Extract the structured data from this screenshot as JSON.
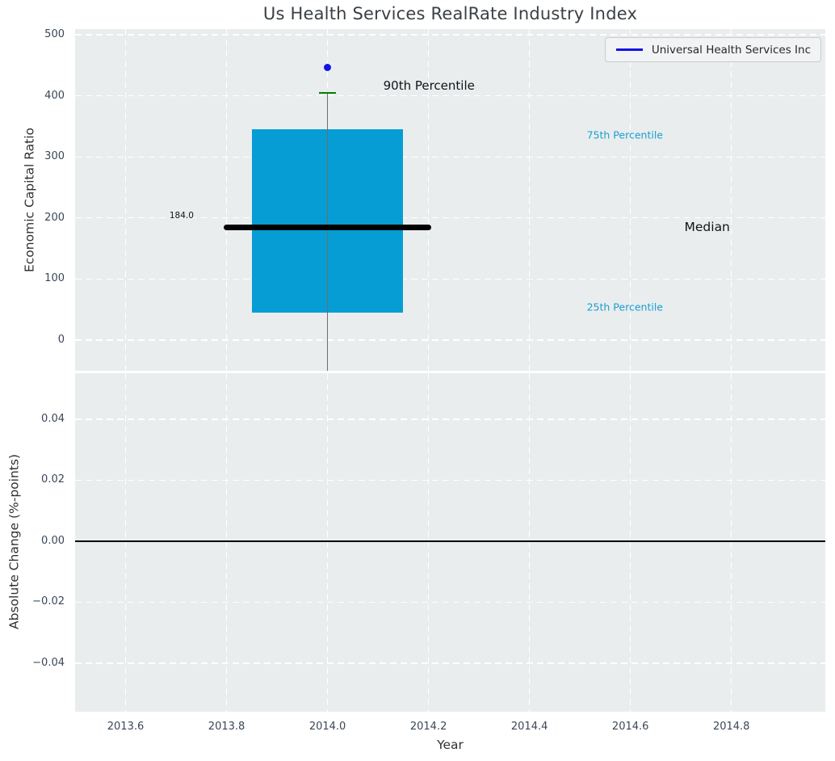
{
  "title": "Us Health Services RealRate Industry Index",
  "legend": {
    "label": "Universal Health Services Inc"
  },
  "colors": {
    "figure_bg": "#ffffff",
    "axes_bg": "#e9edee",
    "grid": "#ffffff",
    "tick_label": "#3a4757",
    "axis_label": "#2e3236",
    "title": "#3b4045",
    "box_fill": "#059dd4",
    "median_line": "#000000",
    "whisker": "#6e6e6e",
    "p90_cap": "#008000",
    "point": "#1512e6",
    "legend_line": "#1512e6",
    "percentile_label": "#1b9ecf",
    "annotation_dark": "#111418",
    "zero_line": "#000000"
  },
  "chart_data": [
    {
      "type": "boxplot",
      "title": "Us Health Services RealRate Industry Index",
      "ylabel": "Economic Capital Ratio",
      "xlim": [
        2013.5,
        2014.986
      ],
      "ylim": [
        -50.4,
        509.4
      ],
      "grid": true,
      "legend_position": "upper right",
      "yticks": [
        0,
        100,
        200,
        300,
        400,
        500
      ],
      "ytick_labels": [
        "0",
        "100",
        "200",
        "300",
        "400",
        "500"
      ],
      "xticks": [
        2013.6,
        2013.8,
        2014.0,
        2014.2,
        2014.4,
        2014.6,
        2014.8
      ],
      "box": {
        "x_center": 2014.0,
        "box_left": 2013.85,
        "box_right": 2014.15,
        "q1_25th_percentile": 45,
        "median": 184,
        "q3_75th_percentile": 345,
        "p90_90th_percentile": 405,
        "median_line_left": 2013.795,
        "median_line_right": 2014.205,
        "cap_left": 2013.983,
        "cap_right": 2014.017,
        "whisker_low_clipped_at_axis_bottom": true,
        "median_label": "184.0"
      },
      "series_point": {
        "name": "Universal Health Services Inc",
        "x": 2014.0,
        "y": 446
      },
      "annotations": [
        {
          "text": "184.0",
          "x": 2013.711,
          "y": 204,
          "size": 10.5,
          "color_key": "annotation_dark",
          "name": "median-value-annotation"
        },
        {
          "text": "90th Percentile",
          "x": 2014.201,
          "y": 417,
          "size": 15,
          "color_key": "annotation_dark",
          "name": "p90-annotation"
        },
        {
          "text": "75th Percentile",
          "x": 2014.589,
          "y": 336,
          "size": 12.5,
          "color_key": "percentile_label",
          "name": "p75-annotation"
        },
        {
          "text": "Median",
          "x": 2014.752,
          "y": 185,
          "size": 15.5,
          "color_key": "annotation_dark",
          "name": "median-annotation"
        },
        {
          "text": "25th Percentile",
          "x": 2014.589,
          "y": 54,
          "size": 12.5,
          "color_key": "percentile_label",
          "name": "p25-annotation"
        }
      ]
    },
    {
      "type": "line",
      "ylabel": "Absolute Change (%-points)",
      "xlabel": "Year",
      "xlim": [
        2013.5,
        2014.986
      ],
      "ylim": [
        -0.0559,
        0.0551
      ],
      "grid": true,
      "yticks": [
        0.04,
        0.02,
        0.0,
        -0.02,
        -0.04
      ],
      "ytick_labels": [
        "0.04",
        "0.02",
        "0.00",
        "−0.02",
        "−0.04"
      ],
      "xticks": [
        2013.6,
        2013.8,
        2014.0,
        2014.2,
        2014.4,
        2014.6,
        2014.8
      ],
      "xtick_labels": [
        "2013.6",
        "2013.8",
        "2014.0",
        "2014.2",
        "2014.4",
        "2014.6",
        "2014.8"
      ],
      "zero_line_y": 0.0
    }
  ]
}
